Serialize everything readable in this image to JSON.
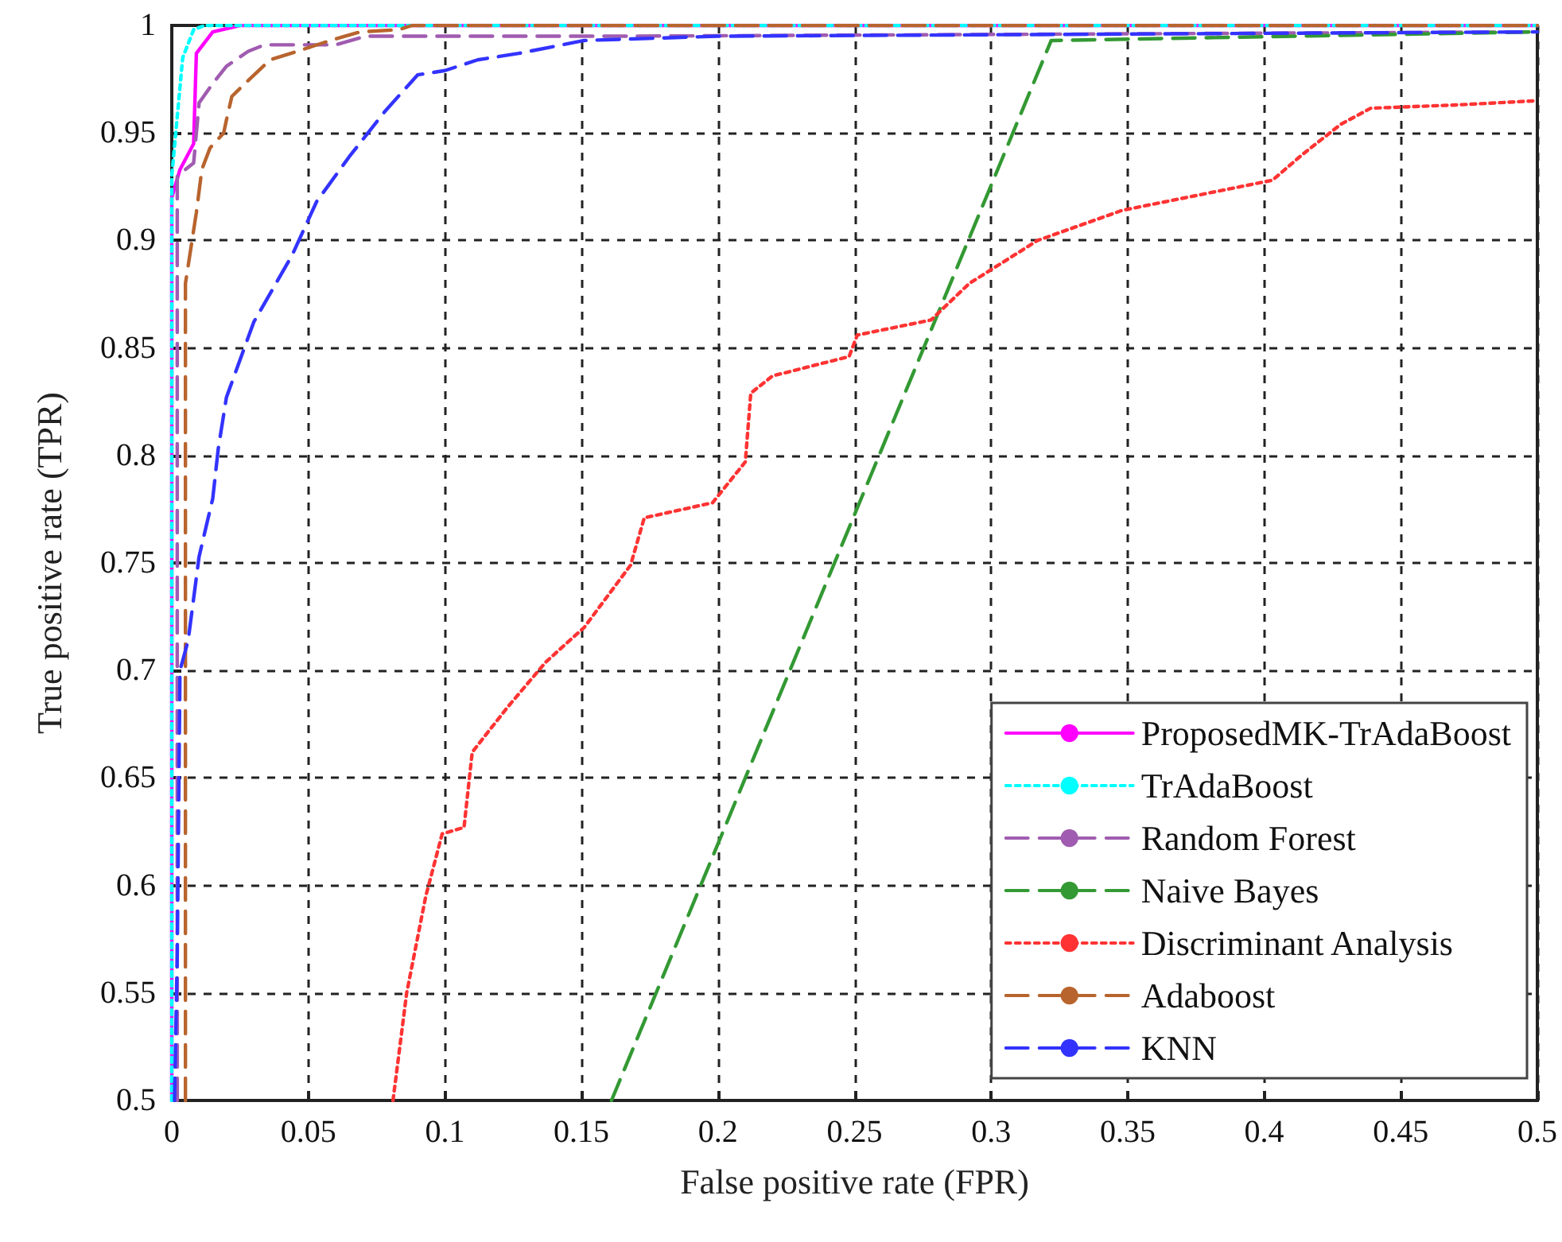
{
  "chart_data": {
    "type": "line",
    "xlabel": "False positive rate (FPR)",
    "ylabel": "True positive rate (TPR)",
    "xlim": [
      0,
      0.5
    ],
    "xticks": [
      0,
      0.05,
      0.1,
      0.15,
      0.2,
      0.25,
      0.3,
      0.35,
      0.4,
      0.45,
      0.5
    ],
    "ylim": [
      0.5,
      1
    ],
    "yticks": [
      0.5,
      0.55,
      0.6,
      0.65,
      0.7,
      0.75,
      0.8,
      0.85,
      0.9,
      0.95,
      1
    ],
    "grid": true,
    "legend": "bottom right",
    "marker": "none",
    "series": [
      {
        "name": "ProposedMK-TrAdaBoost",
        "color": "#ff00ff",
        "line_style": "solid",
        "x": [
          0,
          0,
          0.003,
          0.008,
          0.009,
          0.015,
          0.025,
          0.5
        ],
        "values": [
          0.5,
          0.92,
          0.933,
          0.945,
          0.987,
          0.997,
          1,
          1
        ]
      },
      {
        "name": "TrAdaBoost",
        "color": "#00ffff",
        "line_style": "dotted",
        "x": [
          0,
          0,
          0.004,
          0.008,
          0.012,
          0.5
        ],
        "values": [
          0.5,
          0.93,
          0.985,
          0.998,
          1,
          1
        ]
      },
      {
        "name": "Random Forest",
        "color": "#a05cb0",
        "line_style": "dashed",
        "x": [
          0.002,
          0.002,
          0.008,
          0.01,
          0.015,
          0.02,
          0.028,
          0.034,
          0.06,
          0.071,
          0.164,
          0.5
        ],
        "values": [
          0.5,
          0.93,
          0.936,
          0.964,
          0.973,
          0.981,
          0.988,
          0.991,
          0.991,
          0.995,
          0.995,
          0.997
        ]
      },
      {
        "name": "Naive Bayes",
        "color": "#339933",
        "line_style": "dashed",
        "x": [
          0.161,
          0.322,
          0.5
        ],
        "values": [
          0.5,
          0.993,
          0.997
        ]
      },
      {
        "name": "Discriminant Analysis",
        "color": "#ff3333",
        "line_style": "dotted",
        "x": [
          0.081,
          0.086,
          0.093,
          0.099,
          0.107,
          0.11,
          0.123,
          0.137,
          0.151,
          0.168,
          0.173,
          0.198,
          0.21,
          0.212,
          0.22,
          0.248,
          0.251,
          0.278,
          0.292,
          0.317,
          0.348,
          0.403,
          0.414,
          0.428,
          0.439,
          0.47,
          0.5
        ],
        "values": [
          0.5,
          0.55,
          0.595,
          0.624,
          0.627,
          0.662,
          0.683,
          0.704,
          0.72,
          0.749,
          0.771,
          0.778,
          0.797,
          0.829,
          0.837,
          0.846,
          0.856,
          0.863,
          0.88,
          0.9,
          0.914,
          0.928,
          0.94,
          0.954,
          0.9615,
          0.963,
          0.965
        ]
      },
      {
        "name": "Adaboost",
        "color": "#b8642e",
        "line_style": "dashed",
        "x": [
          0.005,
          0.005,
          0.009,
          0.011,
          0.014,
          0.019,
          0.02,
          0.022,
          0.026,
          0.036,
          0.046,
          0.058,
          0.069,
          0.083,
          0.088,
          0.5
        ],
        "values": [
          0.5,
          0.88,
          0.913,
          0.933,
          0.943,
          0.95,
          0.956,
          0.967,
          0.972,
          0.984,
          0.988,
          0.993,
          0.997,
          0.998,
          1,
          1
        ]
      },
      {
        "name": "KNN",
        "color": "#3333ff",
        "line_style": "dashed",
        "x": [
          0.001,
          0.002,
          0.003,
          0.006,
          0.01,
          0.015,
          0.017,
          0.02,
          0.03,
          0.044,
          0.053,
          0.065,
          0.078,
          0.09,
          0.1,
          0.112,
          0.127,
          0.139,
          0.151,
          0.2,
          0.5
        ],
        "values": [
          0.5,
          0.568,
          0.7,
          0.714,
          0.753,
          0.78,
          0.803,
          0.827,
          0.862,
          0.893,
          0.918,
          0.939,
          0.96,
          0.977,
          0.979,
          0.984,
          0.987,
          0.99,
          0.993,
          0.995,
          0.997
        ]
      }
    ]
  }
}
